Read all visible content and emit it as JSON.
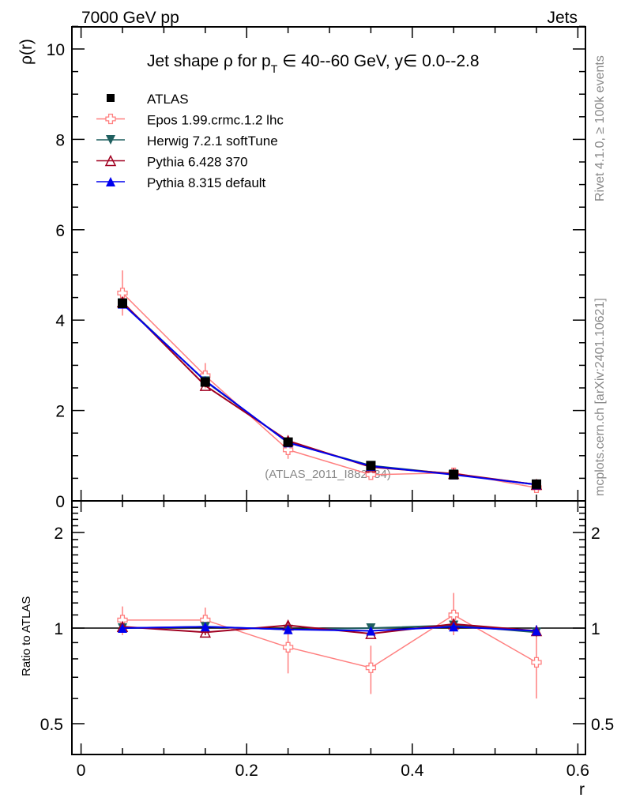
{
  "chart_data": [
    {
      "type": "line",
      "panel": "main",
      "header_left": "7000 GeV pp",
      "header_right": "Jets",
      "title": "Jet shape ρ for p_T ∈ 40--60 GeV, y∈ 0.0--2.8",
      "title_main": "Jet shape ρ for p",
      "title_sub": "T",
      "title_rest": " ∈ 40--60 GeV, y∈ 0.0--2.8",
      "ylabel": "ρ(r)",
      "xlabel": "r",
      "xlim": [
        -0.011,
        0.61
      ],
      "ylim": [
        0,
        10.5
      ],
      "yticks": [
        "0",
        "2",
        "4",
        "6",
        "8",
        "10"
      ],
      "xticks": [
        "0",
        "0.2",
        "0.4",
        "0.6"
      ],
      "analysis_label": "(ATLAS_2011_I882984)",
      "side_label_top": "Rivet 4.1.0, ≥ 100k events",
      "side_label_bottom": "mcplots.cern.ch [arXiv:2401.10621]",
      "legend_placement": "top-left",
      "x": [
        0.05,
        0.15,
        0.25,
        0.35,
        0.45,
        0.55
      ],
      "series": [
        {
          "name": "ATLAS",
          "color": "#000000",
          "marker": "square",
          "values": [
            4.37,
            2.63,
            1.3,
            0.78,
            0.58,
            0.37
          ],
          "errors": [
            0.1,
            0.06,
            0.04,
            0.02,
            0.02,
            0.01
          ]
        },
        {
          "name": "Epos 1.99.crmc.1.2 lhc",
          "color": "#ff7f7f",
          "marker": "open-cross",
          "values": [
            4.6,
            2.77,
            1.13,
            0.58,
            0.62,
            0.29
          ],
          "errors": [
            0.5,
            0.28,
            0.2,
            0.07,
            0.09,
            0.07
          ]
        },
        {
          "name": "Herwig 7.2.1 softTune",
          "color": "#1f5f5f",
          "marker": "triangle-down",
          "values": [
            4.38,
            2.65,
            1.29,
            0.78,
            0.59,
            0.36
          ],
          "errors": [
            0,
            0,
            0,
            0,
            0,
            0
          ]
        },
        {
          "name": "Pythia 6.428 370",
          "color": "#a00020",
          "marker": "open-triangle",
          "values": [
            4.4,
            2.55,
            1.33,
            0.75,
            0.6,
            0.36
          ],
          "errors": [
            0.05,
            0.03,
            0.02,
            0.01,
            0.01,
            0.01
          ]
        },
        {
          "name": "Pythia 8.315 default",
          "color": "#0000ee",
          "marker": "triangle",
          "values": [
            4.36,
            2.66,
            1.29,
            0.77,
            0.58,
            0.36
          ],
          "errors": [
            0,
            0,
            0,
            0,
            0,
            0
          ]
        }
      ]
    },
    {
      "type": "line",
      "panel": "ratio",
      "ylabel": "Ratio to ATLAS",
      "xlabel": "r",
      "yscale": "log",
      "ylim": [
        0.4,
        2.49
      ],
      "yticks": [
        "0.5",
        "1",
        "2"
      ],
      "xticks": [
        "0",
        "0.2",
        "0.4",
        "0.6"
      ],
      "x": [
        0.05,
        0.15,
        0.25,
        0.35,
        0.45,
        0.55
      ],
      "series": [
        {
          "name": "Epos 1.99.crmc.1.2 lhc",
          "color": "#ff7f7f",
          "marker": "open-cross",
          "values": [
            1.06,
            1.06,
            0.87,
            0.75,
            1.1,
            0.78
          ],
          "err_lo": [
            0.95,
            0.96,
            0.72,
            0.62,
            0.95,
            0.6
          ],
          "err_hi": [
            1.17,
            1.16,
            1.0,
            0.88,
            1.29,
            0.97
          ]
        },
        {
          "name": "Herwig 7.2.1 softTune",
          "color": "#1f5f5f",
          "marker": "triangle-down",
          "values": [
            1.0,
            1.01,
            0.99,
            1.0,
            1.02,
            0.97
          ],
          "err_lo": [
            1,
            1,
            1,
            1,
            1,
            1
          ],
          "err_hi": [
            1,
            1,
            1,
            1,
            1,
            1
          ]
        },
        {
          "name": "Pythia 6.428 370",
          "color": "#a00020",
          "marker": "open-triangle",
          "values": [
            1.01,
            0.97,
            1.02,
            0.96,
            1.03,
            0.98
          ],
          "err_lo": [
            0.99,
            0.95,
            1.0,
            0.95,
            1.0,
            0.97
          ],
          "err_hi": [
            1.04,
            0.99,
            1.05,
            0.98,
            1.06,
            1.0
          ]
        },
        {
          "name": "Pythia 8.315 default",
          "color": "#0000ee",
          "marker": "triangle",
          "values": [
            1.0,
            1.01,
            0.99,
            0.98,
            1.01,
            0.98
          ],
          "err_lo": [
            1,
            1,
            1,
            1,
            1,
            0.97
          ],
          "err_hi": [
            1,
            1,
            1,
            1,
            1,
            1.02
          ]
        }
      ]
    }
  ]
}
